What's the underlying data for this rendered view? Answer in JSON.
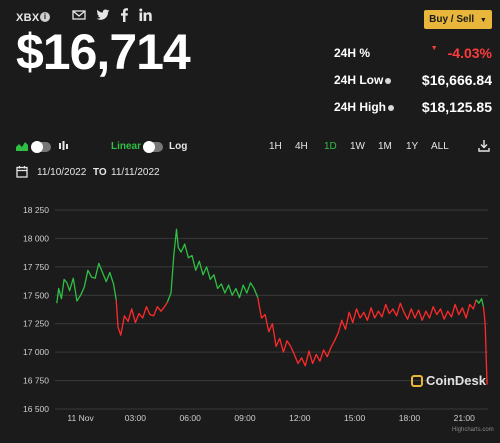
{
  "header": {
    "ticker": "XBX",
    "info_glyph": "i",
    "price": "$16,714",
    "buy_sell_label": "Buy / Sell",
    "share_icons": [
      "email-icon",
      "twitter-icon",
      "facebook-icon",
      "linkedin-icon"
    ]
  },
  "stats": {
    "change": {
      "label": "24H %",
      "value": "-4.03%",
      "arrow": "▼"
    },
    "low": {
      "label": "24H Low",
      "value": "$16,666.84"
    },
    "high": {
      "label": "24H High",
      "value": "$18,125.85"
    }
  },
  "controls": {
    "linear_label": "Linear",
    "log_label": "Log",
    "ranges": [
      "1H",
      "4H",
      "1D",
      "1W",
      "1M",
      "1Y",
      "ALL"
    ],
    "active_range": "1D",
    "date_from": "11/10/2022",
    "to_label": "TO",
    "date_to": "11/11/2022"
  },
  "watermark": {
    "brand": "CoinDesk",
    "credit": "Highcharts.com"
  },
  "colors": {
    "up": "#2fbf44",
    "down": "#ff2a2a",
    "accent": "#e7b63a",
    "background": "#1b1b1b"
  },
  "chart_data": {
    "type": "line",
    "ylim": [
      16500,
      18250
    ],
    "yticks": [
      "18 250",
      "18 000",
      "17 750",
      "17 500",
      "17 250",
      "17 000",
      "16 750",
      "16 500"
    ],
    "yticks_values": [
      18250,
      18000,
      17750,
      17500,
      17250,
      17000,
      16750,
      16500
    ],
    "xlim": [
      -1.4,
      22.3
    ],
    "xticks": [
      "11 Nov",
      "03:00",
      "06:00",
      "09:00",
      "12:00",
      "15:00",
      "18:00",
      "21:00"
    ],
    "xticks_values": [
      0,
      3,
      6,
      9,
      12,
      15,
      18,
      21
    ],
    "series": [
      {
        "color": "up",
        "x": [
          -1.3,
          -1.2,
          -1.05,
          -0.9,
          -0.75,
          -0.6,
          -0.4,
          -0.2,
          0,
          0.2,
          0.4,
          0.6,
          0.8,
          1.0,
          1.2,
          1.4,
          1.6,
          1.8,
          1.95
        ],
        "y": [
          17430,
          17560,
          17470,
          17640,
          17610,
          17540,
          17650,
          17450,
          17500,
          17570,
          17720,
          17660,
          17650,
          17780,
          17700,
          17620,
          17700,
          17600,
          17460
        ]
      },
      {
        "color": "down",
        "x": [
          1.95,
          2.05,
          2.2,
          2.4,
          2.6,
          2.8,
          3.0,
          3.2,
          3.4,
          3.6,
          3.8,
          4.0,
          4.2,
          4.4,
          4.6,
          4.75
        ],
        "y": [
          17460,
          17220,
          17150,
          17320,
          17270,
          17380,
          17260,
          17340,
          17300,
          17400,
          17330,
          17320,
          17400,
          17360,
          17400,
          17440
        ]
      },
      {
        "color": "up",
        "x": [
          4.75,
          4.95,
          5.1,
          5.25,
          5.35,
          5.5,
          5.7,
          5.9,
          6.1,
          6.3,
          6.5,
          6.7,
          6.9,
          7.1,
          7.3,
          7.5,
          7.7,
          7.9,
          8.1,
          8.3,
          8.5,
          8.7,
          8.9,
          9.1,
          9.3,
          9.5,
          9.7
        ],
        "y": [
          17440,
          17520,
          17850,
          18080,
          17920,
          17880,
          17950,
          17830,
          17850,
          17720,
          17800,
          17680,
          17750,
          17640,
          17680,
          17560,
          17600,
          17520,
          17590,
          17500,
          17560,
          17480,
          17590,
          17520,
          17610,
          17560,
          17480
        ]
      },
      {
        "color": "down",
        "x": [
          9.7,
          9.9,
          10.1,
          10.3,
          10.5,
          10.7,
          10.9,
          11.1,
          11.3,
          11.5,
          11.7,
          11.9,
          12.1,
          12.3,
          12.5,
          12.7,
          12.9,
          13.1,
          13.3,
          13.5,
          13.7,
          13.9,
          14.1,
          14.3,
          14.5,
          14.7,
          14.9,
          15.1,
          15.3,
          15.5,
          15.7,
          15.9,
          16.1,
          16.3,
          16.5,
          16.7,
          16.9,
          17.1,
          17.3,
          17.5,
          17.7,
          17.9,
          18.1,
          18.3,
          18.5,
          18.7,
          18.9,
          19.1,
          19.3,
          19.5,
          19.7,
          19.9,
          20.1,
          20.3,
          20.5,
          20.7,
          20.9,
          21.1,
          21.3,
          21.5,
          21.65
        ],
        "y": [
          17480,
          17300,
          17330,
          17180,
          17250,
          17050,
          17120,
          17000,
          17100,
          17050,
          16980,
          16900,
          16950,
          16880,
          17010,
          16900,
          16980,
          16920,
          17020,
          16960,
          17040,
          17100,
          17170,
          17280,
          17200,
          17350,
          17260,
          17380,
          17300,
          17350,
          17280,
          17390,
          17300,
          17360,
          17310,
          17420,
          17340,
          17380,
          17320,
          17430,
          17350,
          17290,
          17380,
          17300,
          17370,
          17280,
          17360,
          17300,
          17400,
          17330,
          17380,
          17290,
          17360,
          17310,
          17420,
          17330,
          17390,
          17300,
          17420,
          17380,
          17460
        ]
      },
      {
        "color": "up",
        "x": [
          21.65,
          21.8,
          21.95,
          22.05
        ],
        "y": [
          17460,
          17430,
          17470,
          17400
        ]
      },
      {
        "color": "down",
        "x": [
          22.05,
          22.1,
          22.15,
          22.2,
          22.25
        ],
        "y": [
          17400,
          17330,
          17220,
          16950,
          16714
        ]
      }
    ]
  }
}
